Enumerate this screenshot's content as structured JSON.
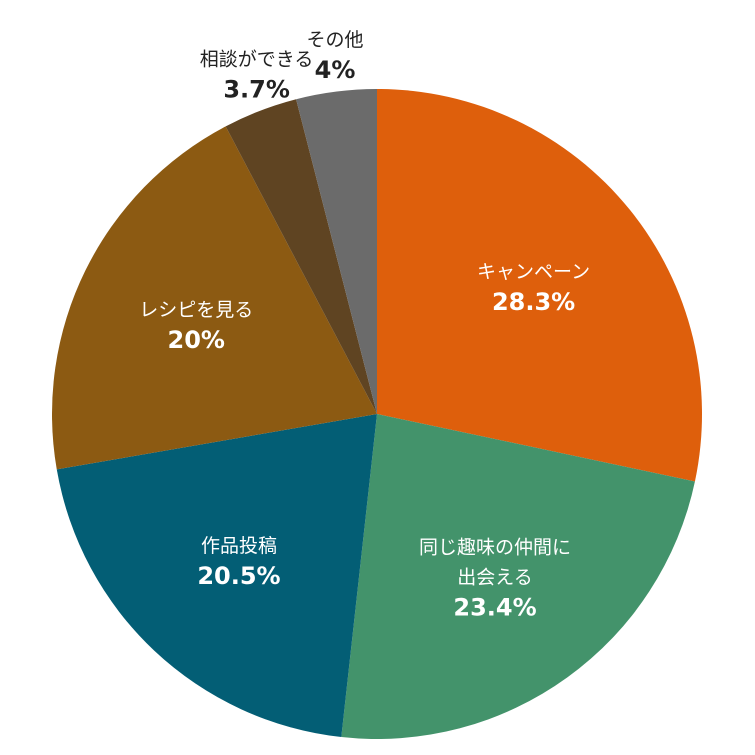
{
  "chart_data": {
    "type": "pie",
    "start_angle_deg": 0,
    "direction": "clockwise",
    "slices": [
      {
        "label": "キャンペーン",
        "value": 28.3,
        "value_label": "28.3%",
        "color": "#DE5F0C",
        "label_color": "#ffffff",
        "label_inside": true
      },
      {
        "label": "同じ趣味の仲間に出会える",
        "label_lines": [
          "同じ趣味の仲間に",
          "出会える"
        ],
        "value": 23.4,
        "value_label": "23.4%",
        "color": "#43936B",
        "label_color": "#ffffff",
        "label_inside": true
      },
      {
        "label": "作品投稿",
        "value": 20.5,
        "value_label": "20.5%",
        "color": "#035E75",
        "label_color": "#ffffff",
        "label_inside": true
      },
      {
        "label": "レシピを見る",
        "value": 20,
        "value_label": "20%",
        "color": "#8C5A12",
        "label_color": "#ffffff",
        "label_inside": true
      },
      {
        "label": "相談ができる",
        "value": 3.7,
        "value_label": "3.7%",
        "color": "#5F4422",
        "label_color": "#222222",
        "label_inside": false
      },
      {
        "label": "その他",
        "value": 4,
        "value_label": "4%",
        "color": "#6B6B6B",
        "label_color": "#222222",
        "label_inside": false
      }
    ]
  }
}
